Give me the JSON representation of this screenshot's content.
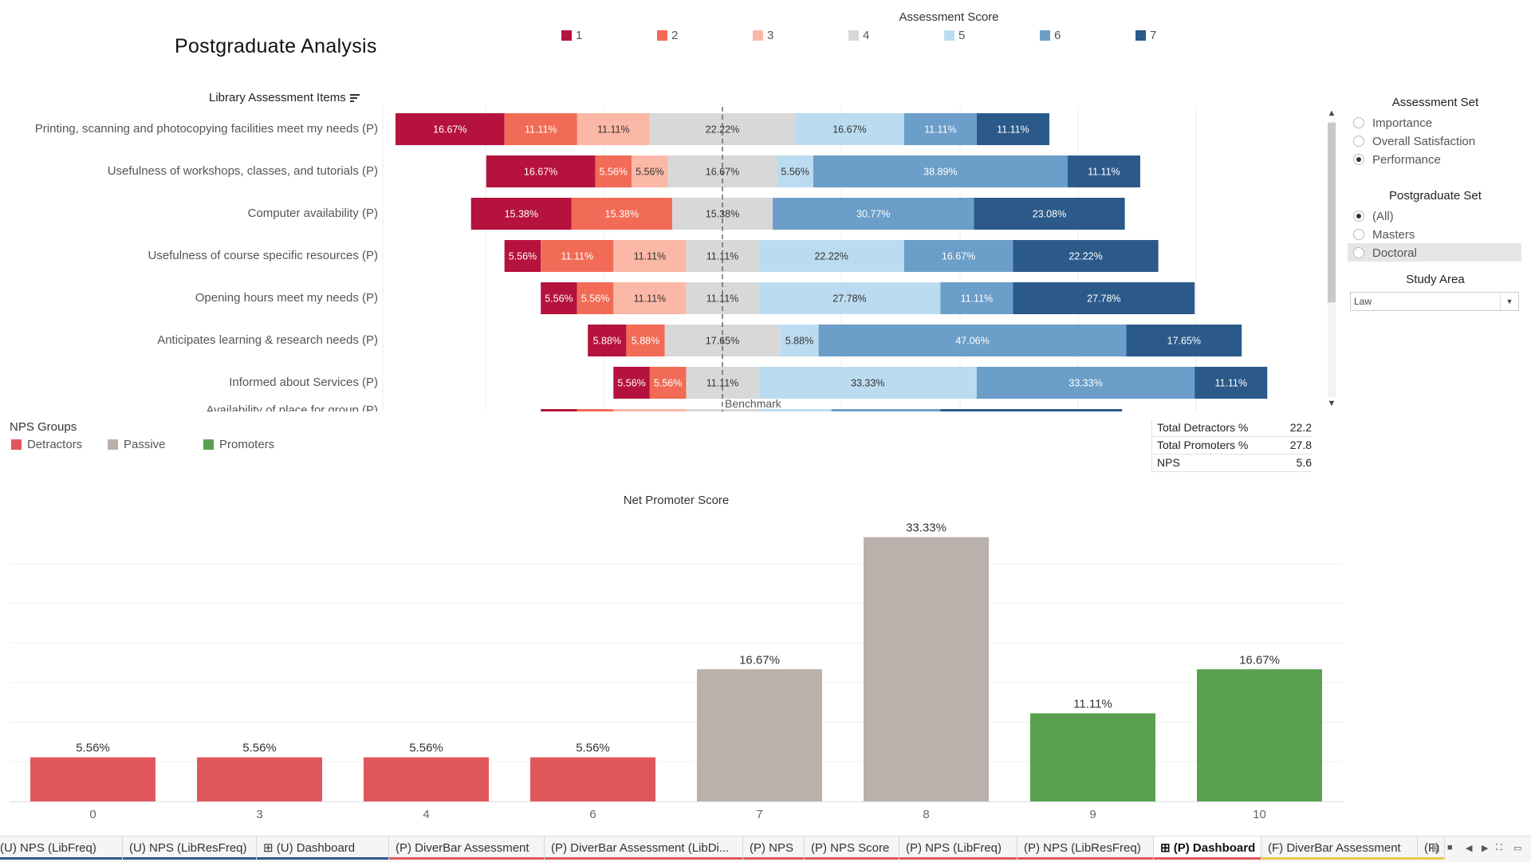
{
  "title": "Postgraduate Analysis",
  "score_legend": {
    "title": "Assessment Score",
    "items": [
      {
        "label": "1",
        "color": "#b5123e"
      },
      {
        "label": "2",
        "color": "#f26b56"
      },
      {
        "label": "3",
        "color": "#fbb8a6"
      },
      {
        "label": "4",
        "color": "#d8d8d8"
      },
      {
        "label": "5",
        "color": "#bbdcf0"
      },
      {
        "label": "6",
        "color": "#6b9ec8"
      },
      {
        "label": "7",
        "color": "#2b5a8a"
      }
    ]
  },
  "items_header": "Library Assessment Items",
  "benchmark_label": "Benchmark",
  "chart_data": [
    {
      "type": "bar",
      "orientation": "horizontal-diverging",
      "series_names": [
        "1",
        "2",
        "3",
        "4",
        "5",
        "6",
        "7"
      ],
      "rows": [
        {
          "label": "Printing, scanning and photocopying facilities meet my needs (P)",
          "values": [
            16.67,
            11.11,
            11.11,
            22.22,
            16.67,
            11.11,
            11.11
          ]
        },
        {
          "label": "Usefulness of workshops, classes, and tutorials (P)",
          "values": [
            16.67,
            5.56,
            5.56,
            16.67,
            5.56,
            38.89,
            11.11
          ]
        },
        {
          "label": "Computer availability (P)",
          "values": [
            15.38,
            15.38,
            0,
            15.38,
            0,
            30.77,
            23.08
          ]
        },
        {
          "label": "Usefulness of course specific resources (P)",
          "values": [
            5.56,
            11.11,
            11.11,
            11.11,
            22.22,
            16.67,
            22.22
          ]
        },
        {
          "label": "Opening hours meet my needs (P)",
          "values": [
            5.56,
            5.56,
            11.11,
            11.11,
            27.78,
            11.11,
            27.78
          ]
        },
        {
          "label": "Anticipates learning & research needs (P)",
          "values": [
            5.88,
            5.88,
            0,
            17.65,
            5.88,
            47.06,
            17.65
          ]
        },
        {
          "label": "Informed about Services (P)",
          "values": [
            5.56,
            5.56,
            0,
            11.11,
            33.33,
            33.33,
            11.11
          ]
        },
        {
          "label": "Availability of place for group (P)",
          "values": [
            5.56,
            5.56,
            11.11,
            11.11,
            11.11,
            16.67,
            27.78
          ]
        }
      ]
    },
    {
      "type": "bar",
      "title": "Net Promoter Score",
      "categories": [
        "0",
        "3",
        "4",
        "6",
        "7",
        "8",
        "9",
        "10"
      ],
      "values": [
        5.56,
        5.56,
        5.56,
        5.56,
        16.67,
        33.33,
        11.11,
        16.67
      ],
      "labels": [
        "5.56%",
        "5.56%",
        "5.56%",
        "5.56%",
        "16.67%",
        "33.33%",
        "11.11%",
        "16.67%"
      ],
      "groups": [
        "Detractors",
        "Detractors",
        "Detractors",
        "Detractors",
        "Passive",
        "Passive",
        "Promoters",
        "Promoters"
      ],
      "ylim": [
        0,
        35
      ]
    }
  ],
  "assessment_set": {
    "title": "Assessment Set",
    "options": [
      "Importance",
      "Overall Satisfaction",
      "Performance"
    ],
    "selected": "Performance"
  },
  "postgraduate_set": {
    "title": "Postgraduate Set",
    "options": [
      "(All)",
      "Masters",
      "Doctoral"
    ],
    "selected": "(All)"
  },
  "study_area": {
    "title": "Study Area",
    "value": "Law"
  },
  "nps_groups": {
    "title": "NPS Groups",
    "items": [
      {
        "label": "Detractors",
        "color": "#e0575b"
      },
      {
        "label": "Passive",
        "color": "#bab0ac"
      },
      {
        "label": "Promoters",
        "color": "#59a14f"
      }
    ]
  },
  "totals": [
    {
      "label": "Total Detractors %",
      "value": "22.2"
    },
    {
      "label": "Total Promoters %",
      "value": "27.8"
    },
    {
      "label": "NPS",
      "value": "5.6"
    }
  ],
  "tabs": [
    {
      "label": "(U) NPS (LibFreq)",
      "underline": "#2b5a8a",
      "active": false,
      "icon": ""
    },
    {
      "label": "(U) NPS (LibResFreq)",
      "underline": "#2b5a8a",
      "active": false,
      "icon": ""
    },
    {
      "label": "(U) Dashboard",
      "underline": "#2b5a8a",
      "active": false,
      "icon": "grid-icon"
    },
    {
      "label": "(P) DiverBar Assessment",
      "underline": "#e0575b",
      "active": false,
      "icon": ""
    },
    {
      "label": "(P) DiverBar Assessment (LibDi...",
      "underline": "#e0575b",
      "active": false,
      "icon": ""
    },
    {
      "label": "(P) NPS",
      "underline": "#e0575b",
      "active": false,
      "icon": ""
    },
    {
      "label": "(P) NPS Score",
      "underline": "#e0575b",
      "active": false,
      "icon": ""
    },
    {
      "label": "(P) NPS (LibFreq)",
      "underline": "#e0575b",
      "active": false,
      "icon": ""
    },
    {
      "label": "(P) NPS (LibResFreq)",
      "underline": "#e0575b",
      "active": false,
      "icon": ""
    },
    {
      "label": "(P) Dashboard",
      "underline": "#e0575b",
      "active": true,
      "icon": "grid-icon"
    },
    {
      "label": "(F) DiverBar Assessment",
      "underline": "#e8c94a",
      "active": false,
      "icon": ""
    },
    {
      "label": "(F)",
      "underline": "#e8c94a",
      "active": false,
      "icon": ""
    }
  ]
}
